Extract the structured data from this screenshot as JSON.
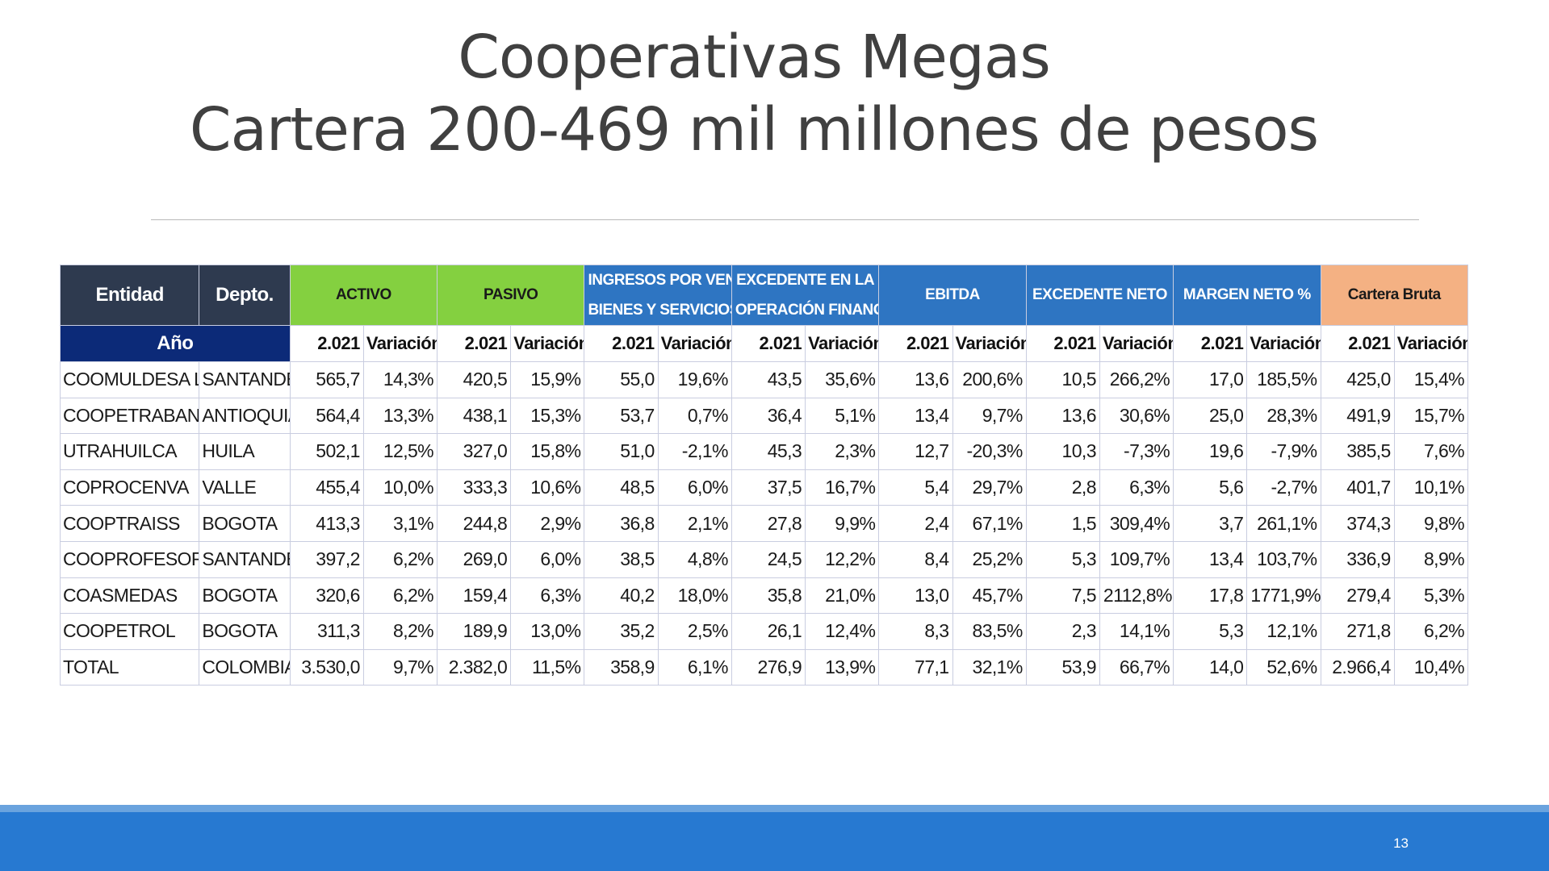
{
  "title": {
    "line1": "Cooperativas Megas",
    "line2": "Cartera 200-469 mil millones de pesos"
  },
  "table": {
    "headers": {
      "entidad": "Entidad",
      "depto": "Depto.",
      "activo": "ACTIVO",
      "pasivo": "PASIVO",
      "ingresos_l1": "INGRESOS POR VENTA DE",
      "ingresos_l2": "BIENES Y SERVICIOS",
      "excedente_op_l1": "EXCEDENTE EN LA",
      "excedente_op_l2": "OPERACIÓN FINANCIERA",
      "ebitda": "EBITDA",
      "excedente_neto": "EXCEDENTE NETO",
      "margen_neto": "MARGEN NETO %",
      "cartera_bruta": "Cartera Bruta"
    },
    "subheader": {
      "anio": "Año",
      "year": "2.021",
      "variacion": "Variación"
    },
    "rows": [
      [
        "COOMULDESA LTDA",
        "SANTANDER",
        "565,7",
        "14,3%",
        "420,5",
        "15,9%",
        "55,0",
        "19,6%",
        "43,5",
        "35,6%",
        "13,6",
        "200,6%",
        "10,5",
        "266,2%",
        "17,0",
        "185,5%",
        "425,0",
        "15,4%"
      ],
      [
        "COOPETRABAN",
        "ANTIOQUIA",
        "564,4",
        "13,3%",
        "438,1",
        "15,3%",
        "53,7",
        "0,7%",
        "36,4",
        "5,1%",
        "13,4",
        "9,7%",
        "13,6",
        "30,6%",
        "25,0",
        "28,3%",
        "491,9",
        "15,7%"
      ],
      [
        "UTRAHUILCA",
        "HUILA",
        "502,1",
        "12,5%",
        "327,0",
        "15,8%",
        "51,0",
        "-2,1%",
        "45,3",
        "2,3%",
        "12,7",
        "-20,3%",
        "10,3",
        "-7,3%",
        "19,6",
        "-7,9%",
        "385,5",
        "7,6%"
      ],
      [
        "COPROCENVA",
        "VALLE",
        "455,4",
        "10,0%",
        "333,3",
        "10,6%",
        "48,5",
        "6,0%",
        "37,5",
        "16,7%",
        "5,4",
        "29,7%",
        "2,8",
        "6,3%",
        "5,6",
        "-2,7%",
        "401,7",
        "10,1%"
      ],
      [
        "COOPTRAISS",
        "BOGOTA",
        "413,3",
        "3,1%",
        "244,8",
        "2,9%",
        "36,8",
        "2,1%",
        "27,8",
        "9,9%",
        "2,4",
        "67,1%",
        "1,5",
        "309,4%",
        "3,7",
        "261,1%",
        "374,3",
        "9,8%"
      ],
      [
        "COOPROFESORES",
        "SANTANDER",
        "397,2",
        "6,2%",
        "269,0",
        "6,0%",
        "38,5",
        "4,8%",
        "24,5",
        "12,2%",
        "8,4",
        "25,2%",
        "5,3",
        "109,7%",
        "13,4",
        "103,7%",
        "336,9",
        "8,9%"
      ],
      [
        "COASMEDAS",
        "BOGOTA",
        "320,6",
        "6,2%",
        "159,4",
        "6,3%",
        "40,2",
        "18,0%",
        "35,8",
        "21,0%",
        "13,0",
        "45,7%",
        "7,5",
        "2112,8%",
        "17,8",
        "1771,9%",
        "279,4",
        "5,3%"
      ],
      [
        "COOPETROL",
        "BOGOTA",
        "311,3",
        "8,2%",
        "189,9",
        "13,0%",
        "35,2",
        "2,5%",
        "26,1",
        "12,4%",
        "8,3",
        "83,5%",
        "2,3",
        "14,1%",
        "5,3",
        "12,1%",
        "271,8",
        "6,2%"
      ],
      [
        "TOTAL",
        "COLOMBIA",
        "3.530,0",
        "9,7%",
        "2.382,0",
        "11,5%",
        "358,9",
        "6,1%",
        "276,9",
        "13,9%",
        "77,1",
        "32,1%",
        "53,9",
        "66,7%",
        "14,0",
        "52,6%",
        "2.966,4",
        "10,4%"
      ]
    ]
  },
  "footer": {
    "page_number": "13"
  },
  "colors": {
    "title": "#404040",
    "header_dark": "#2e3a4f",
    "header_green": "#84d040",
    "header_blue": "#2e75c2",
    "header_salmon": "#f4b183",
    "anio_navy": "#0c2a78",
    "footer_blue": "#2779d1"
  }
}
